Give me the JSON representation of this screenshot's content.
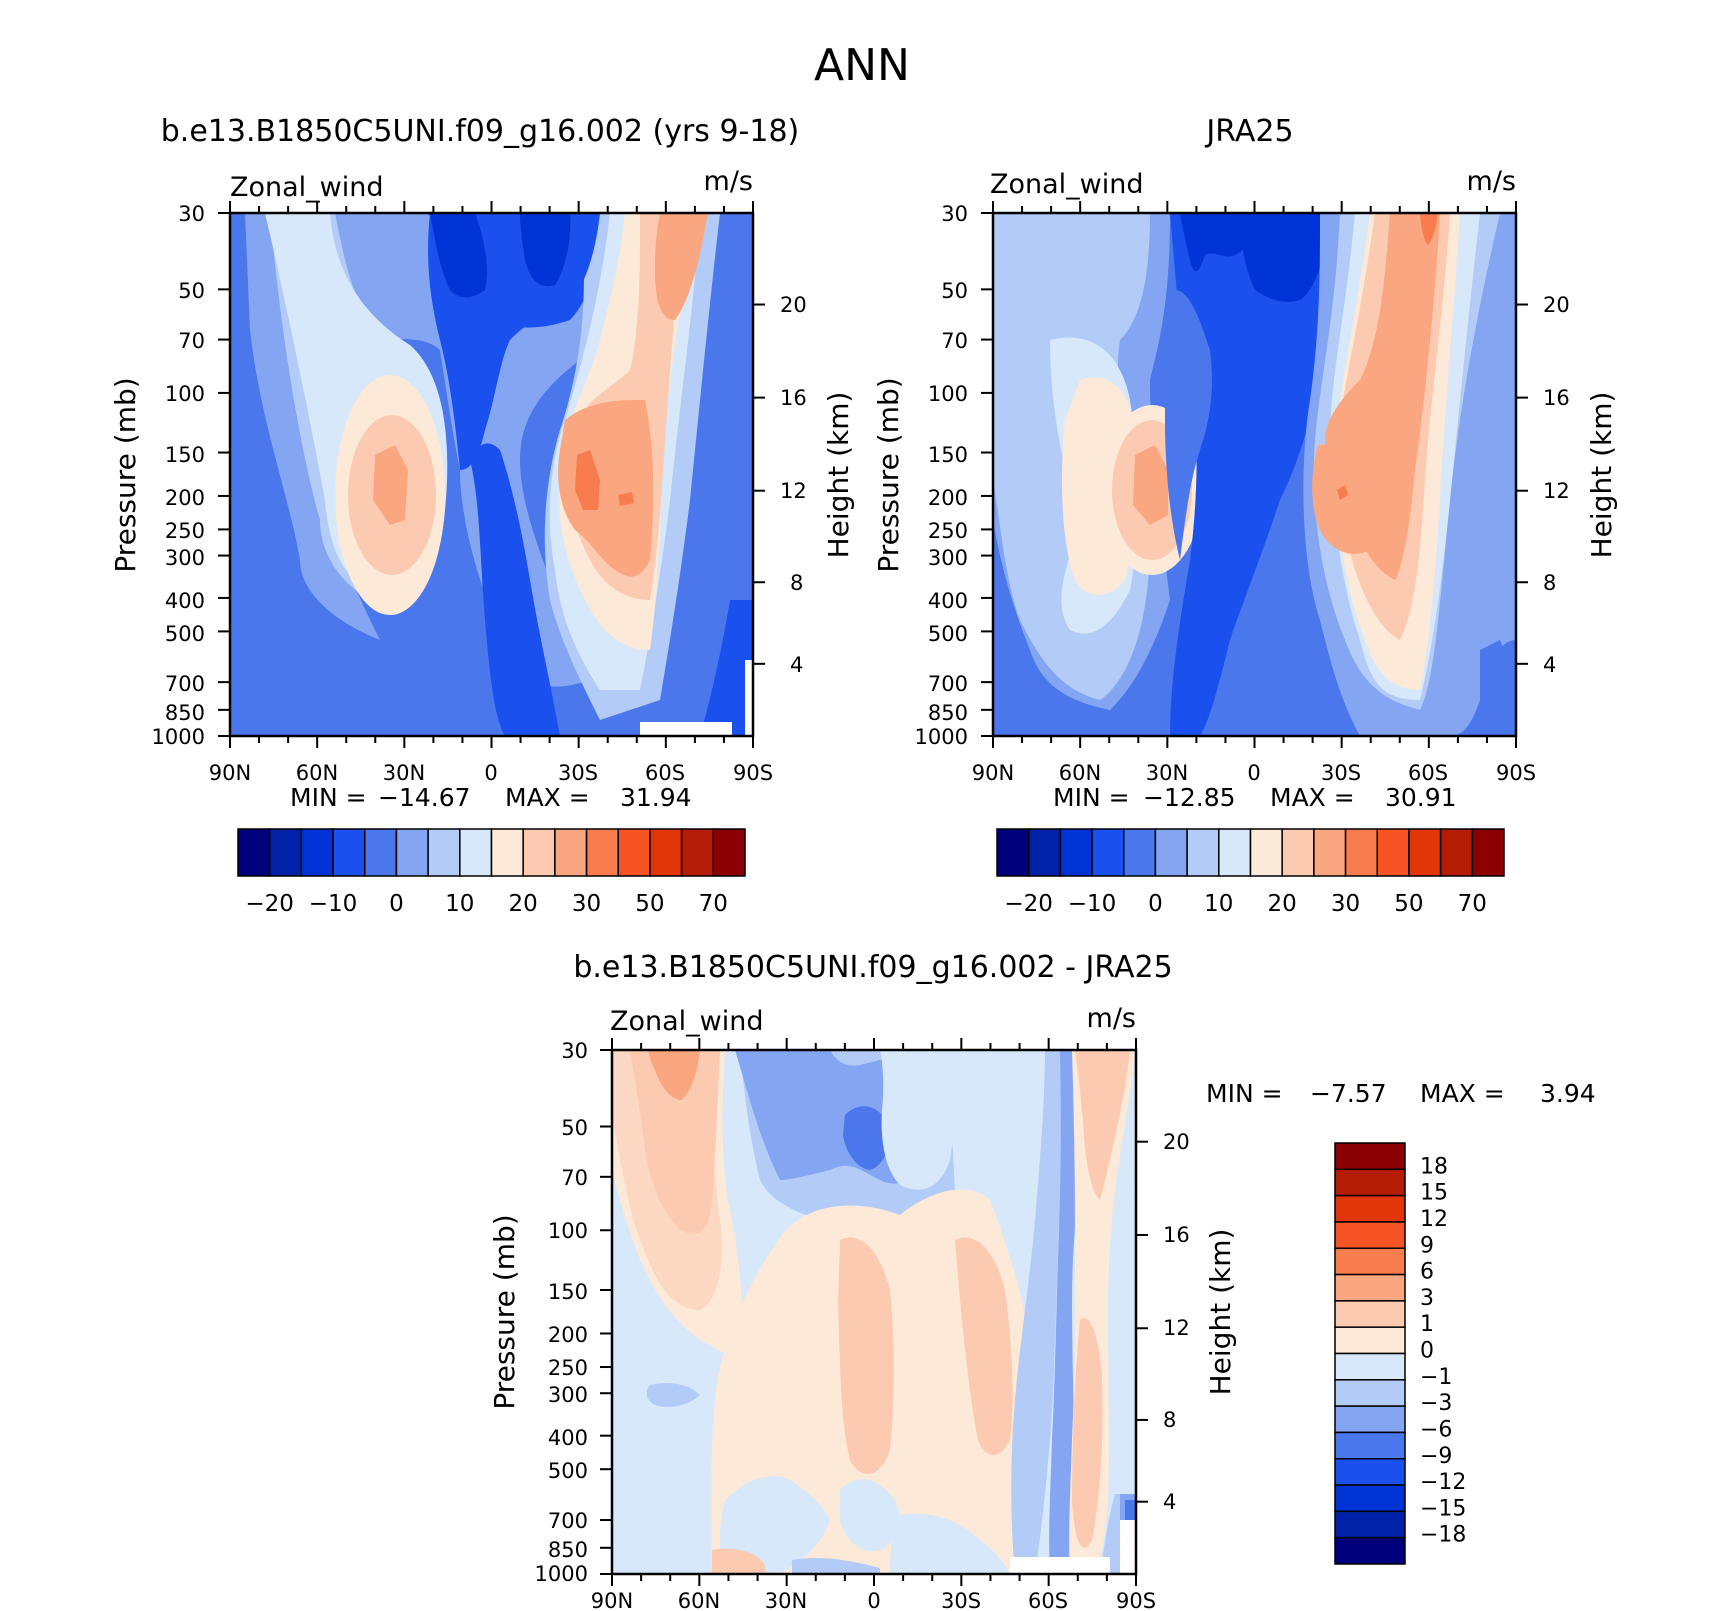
{
  "figure": {
    "title": "ANN"
  },
  "colors": {
    "main_scale": [
      "#00007d",
      "#0022a8",
      "#0033d6",
      "#1a50ee",
      "#4a78ec",
      "#84a6f2",
      "#b3cbf7",
      "#d8e8fb",
      "#fde9d8",
      "#fccab0",
      "#faa680",
      "#f87c4e",
      "#f75425",
      "#e23508",
      "#b51c05",
      "#8b0000"
    ],
    "diff_scale": [
      "#00007d",
      "#0022a8",
      "#0033d6",
      "#1a50ee",
      "#4a78ec",
      "#84a6f2",
      "#b3cbf7",
      "#d8e8fb",
      "#fde9d8",
      "#fccab0",
      "#faa680",
      "#f87c4e",
      "#f75425",
      "#e23508",
      "#b51c05",
      "#8b0000"
    ]
  },
  "chart_data": [
    {
      "type": "heatmap",
      "title": "b.e13.B1850C5UNI.f09_g16.002 (yrs 9-18)",
      "left_label": "Zonal_wind",
      "right_label": "m/s",
      "ylabel": "Pressure (mb)",
      "ylabel_right": "Height (km)",
      "x_ticks": [
        "90N",
        "60N",
        "30N",
        "0",
        "30S",
        "60S",
        "90S"
      ],
      "y_ticks": [
        "30",
        "50",
        "70",
        "100",
        "150",
        "200",
        "250",
        "300",
        "400",
        "500",
        "700",
        "850",
        "1000"
      ],
      "y_right_ticks": [
        "20",
        "16",
        "12",
        "8",
        "4"
      ],
      "stats": {
        "min_label": "MIN =",
        "min": "-14.67",
        "max_label": "MAX =",
        "max": "31.94"
      },
      "colorbar_ticks": [
        "-20",
        "-10",
        "0",
        "10",
        "20",
        "30",
        "50",
        "70"
      ]
    },
    {
      "type": "heatmap",
      "title": "JRA25",
      "left_label": "Zonal_wind",
      "right_label": "m/s",
      "ylabel": "Pressure (mb)",
      "ylabel_right": "Height (km)",
      "x_ticks": [
        "90N",
        "60N",
        "30N",
        "0",
        "30S",
        "60S",
        "90S"
      ],
      "y_ticks": [
        "30",
        "50",
        "70",
        "100",
        "150",
        "200",
        "250",
        "300",
        "400",
        "500",
        "700",
        "850",
        "1000"
      ],
      "y_right_ticks": [
        "20",
        "16",
        "12",
        "8",
        "4"
      ],
      "stats": {
        "min_label": "MIN =",
        "min": "-12.85",
        "max_label": "MAX =",
        "max": "30.91"
      },
      "colorbar_ticks": [
        "-20",
        "-10",
        "0",
        "10",
        "20",
        "30",
        "50",
        "70"
      ]
    },
    {
      "type": "heatmap",
      "title": "b.e13.B1850C5UNI.f09_g16.002 - JRA25",
      "left_label": "Zonal_wind",
      "right_label": "m/s",
      "ylabel": "Pressure (mb)",
      "ylabel_right": "Height (km)",
      "x_ticks": [
        "90N",
        "60N",
        "30N",
        "0",
        "30S",
        "60S",
        "90S"
      ],
      "y_ticks": [
        "30",
        "50",
        "70",
        "100",
        "150",
        "200",
        "250",
        "300",
        "400",
        "500",
        "700",
        "850",
        "1000"
      ],
      "y_right_ticks": [
        "20",
        "16",
        "12",
        "8",
        "4"
      ],
      "stats": {
        "min_label": "MIN =",
        "min": "-7.57",
        "max_label": "MAX =",
        "max": "3.94"
      },
      "colorbar_ticks": [
        "18",
        "15",
        "12",
        "9",
        "6",
        "3",
        "1",
        "0",
        "-1",
        "-3",
        "-6",
        "-9",
        "-12",
        "-15",
        "-18"
      ]
    }
  ]
}
